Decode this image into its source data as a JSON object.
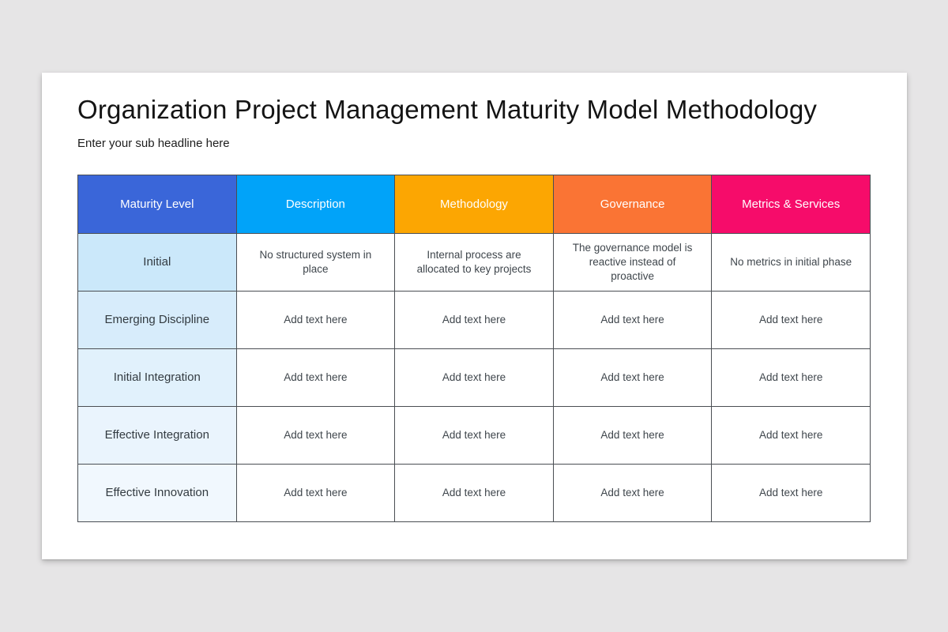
{
  "page": {
    "background_color": "#e6e5e6",
    "card_color": "#ffffff",
    "border_color": "#4a4e53"
  },
  "slide": {
    "title": "Organization Project Management Maturity Model Methodology",
    "subtitle": "Enter your sub headline here"
  },
  "table": {
    "columns": [
      {
        "label": "Maturity Level",
        "color": "#3a66d9"
      },
      {
        "label": "Description",
        "color": "#01a3f9"
      },
      {
        "label": "Methodology",
        "color": "#fca602"
      },
      {
        "label": "Governance",
        "color": "#fa7434"
      },
      {
        "label": "Metrics & Services",
        "color": "#f60c6a"
      }
    ],
    "rows": [
      {
        "level": "Initial",
        "level_bg": "#cbe8fa",
        "cells": [
          "No structured system in place",
          "Internal process are allocated to key projects",
          "The governance model is reactive instead of proactive",
          "No metrics in initial phase"
        ]
      },
      {
        "level": "Emerging Discipline",
        "level_bg": "#d7ecfb",
        "cells": [
          "Add text here",
          "Add text here",
          "Add text here",
          "Add text here"
        ]
      },
      {
        "level": "Initial Integration",
        "level_bg": "#e1f1fc",
        "cells": [
          "Add text here",
          "Add text here",
          "Add text here",
          "Add text here"
        ]
      },
      {
        "level": "Effective Integration",
        "level_bg": "#eaf4fd",
        "cells": [
          "Add text here",
          "Add text here",
          "Add text here",
          "Add text here"
        ]
      },
      {
        "level": "Effective Innovation",
        "level_bg": "#f1f8fe",
        "cells": [
          "Add text here",
          "Add text here",
          "Add text here",
          "Add text here"
        ]
      }
    ]
  }
}
